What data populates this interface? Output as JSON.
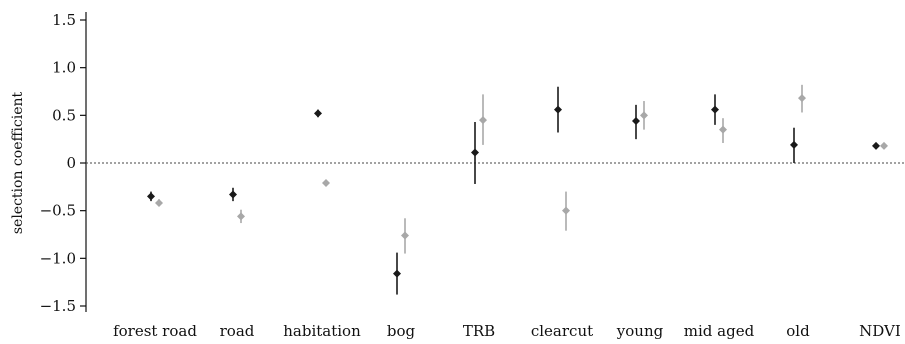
{
  "chart_data": {
    "type": "scatter",
    "title": "",
    "xlabel": "",
    "ylabel": "selection coefficient",
    "ylim": [
      -1.6,
      1.6
    ],
    "yticks": [
      1.5,
      1.0,
      0.5,
      0,
      -0.5,
      -1.0,
      -1.5
    ],
    "ytick_labels": [
      "1.5",
      "1.0",
      "0.5",
      "0",
      "−0.5",
      "−1.0",
      "−1.5"
    ],
    "categories": [
      "forest road",
      "road",
      "habitation",
      "bog",
      "TRB",
      "clearcut",
      "young",
      "mid aged",
      "old",
      "NDVI"
    ],
    "reference_line": {
      "y": 0,
      "style": "dotted"
    },
    "grid": false,
    "legend": "none",
    "series": [
      {
        "color": "#1a1a1a",
        "values": [
          -0.35,
          -0.33,
          0.52,
          -1.16,
          0.11,
          0.56,
          0.44,
          0.56,
          0.19,
          0.18
        ],
        "lower": [
          -0.4,
          -0.4,
          0.48,
          -1.38,
          -0.22,
          0.32,
          0.25,
          0.4,
          0.0,
          0.15
        ],
        "upper": [
          -0.3,
          -0.26,
          0.56,
          -0.94,
          0.43,
          0.8,
          0.61,
          0.72,
          0.37,
          0.21
        ]
      },
      {
        "color": "#a8a8a8",
        "values": [
          -0.42,
          -0.56,
          -0.21,
          -0.76,
          0.45,
          -0.5,
          0.5,
          0.35,
          0.68,
          0.18
        ],
        "lower": [
          -0.45,
          -0.63,
          -0.24,
          -0.95,
          0.19,
          -0.71,
          0.35,
          0.21,
          0.53,
          0.16
        ],
        "upper": [
          -0.38,
          -0.49,
          -0.18,
          -0.58,
          0.72,
          -0.3,
          0.65,
          0.47,
          0.82,
          0.21
        ]
      }
    ]
  }
}
